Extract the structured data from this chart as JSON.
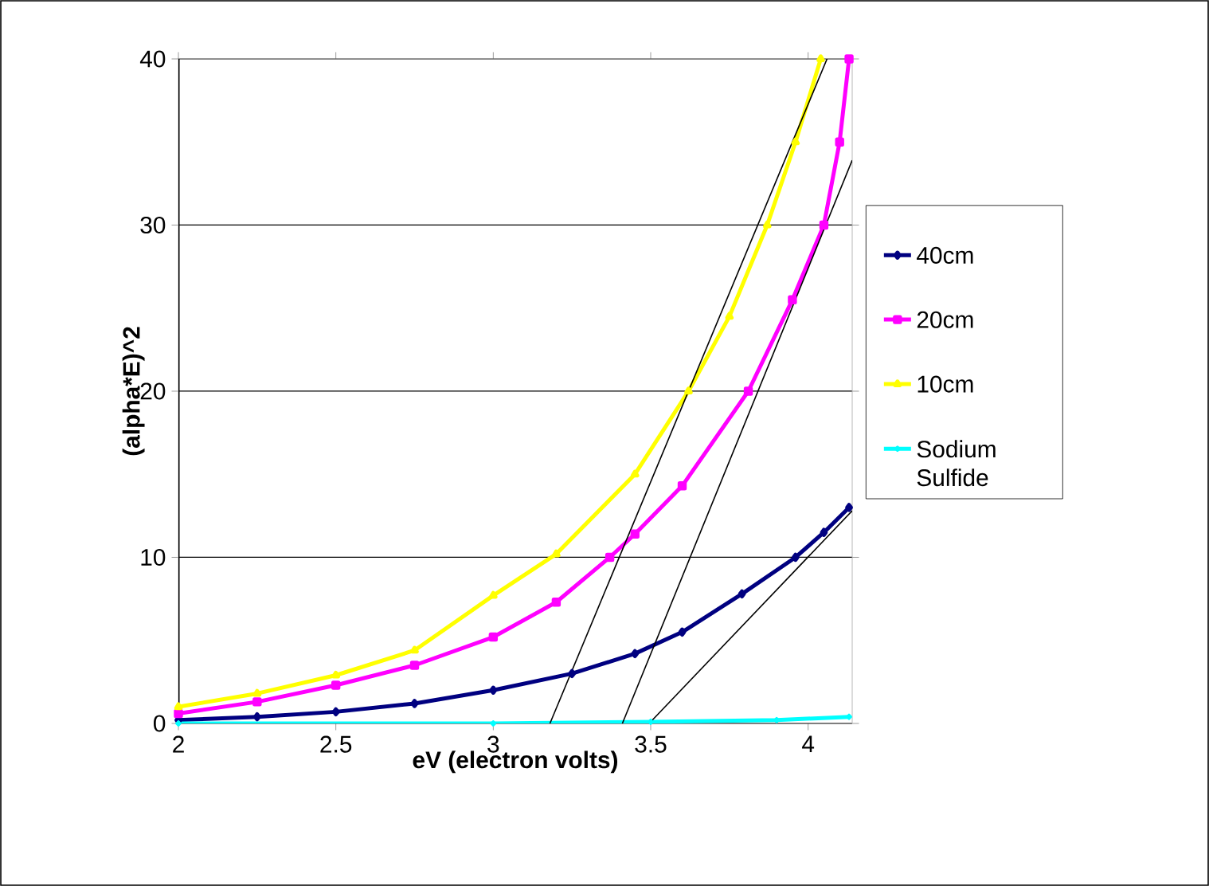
{
  "chart_data": {
    "type": "line",
    "xlabel": "eV (electron volts)",
    "ylabel": "(alpha*E)^2",
    "xlim": [
      2,
      4.14
    ],
    "ylim": [
      0,
      40
    ],
    "xticks": [
      2,
      2.5,
      3,
      3.5,
      4
    ],
    "yticks": [
      0,
      10,
      20,
      30,
      40
    ],
    "grid": "y",
    "legend": "right",
    "series": [
      {
        "name": "40cm",
        "color": "#000080",
        "marker": "diamond",
        "x": [
          2,
          2.25,
          2.5,
          2.75,
          3.0,
          3.25,
          3.45,
          3.6,
          3.79,
          3.96,
          4.05,
          4.13
        ],
        "values": [
          0.2,
          0.4,
          0.7,
          1.2,
          2.0,
          3.0,
          4.2,
          5.5,
          7.8,
          10,
          11.5,
          13
        ]
      },
      {
        "name": "20cm",
        "color": "#ff00ff",
        "marker": "square",
        "x": [
          2,
          2.25,
          2.5,
          2.75,
          3.0,
          3.2,
          3.37,
          3.45,
          3.6,
          3.81,
          3.95,
          4.05,
          4.1,
          4.13
        ],
        "values": [
          0.6,
          1.3,
          2.3,
          3.5,
          5.2,
          7.3,
          10,
          11.4,
          14.3,
          20,
          25.5,
          30,
          35,
          40
        ]
      },
      {
        "name": "10cm",
        "color": "#ffff00",
        "marker": "triangle",
        "x": [
          2,
          2.25,
          2.5,
          2.75,
          3.0,
          3.2,
          3.45,
          3.62,
          3.75,
          3.87,
          3.96,
          4.04
        ],
        "values": [
          1.0,
          1.8,
          2.9,
          4.4,
          7.7,
          10.2,
          15,
          20,
          24.5,
          30,
          35,
          40
        ]
      },
      {
        "name": "Sodium Sulfide",
        "color": "#00ffff",
        "marker": "cross",
        "x": [
          2,
          3,
          3.5,
          3.9,
          4.13
        ],
        "values": [
          0,
          0,
          0.1,
          0.2,
          0.4
        ]
      },
      {
        "type": "line",
        "color": "#000000",
        "marker": "none",
        "x": [
          3.18,
          4.06
        ],
        "values": [
          0,
          40
        ]
      },
      {
        "type": "line",
        "color": "#000000",
        "marker": "none",
        "x": [
          3.41,
          4.14
        ],
        "values": [
          0,
          33.9
        ]
      },
      {
        "type": "line",
        "color": "#000000",
        "marker": "none",
        "x": [
          3.495,
          4.14
        ],
        "values": [
          0,
          12.8
        ]
      }
    ]
  }
}
